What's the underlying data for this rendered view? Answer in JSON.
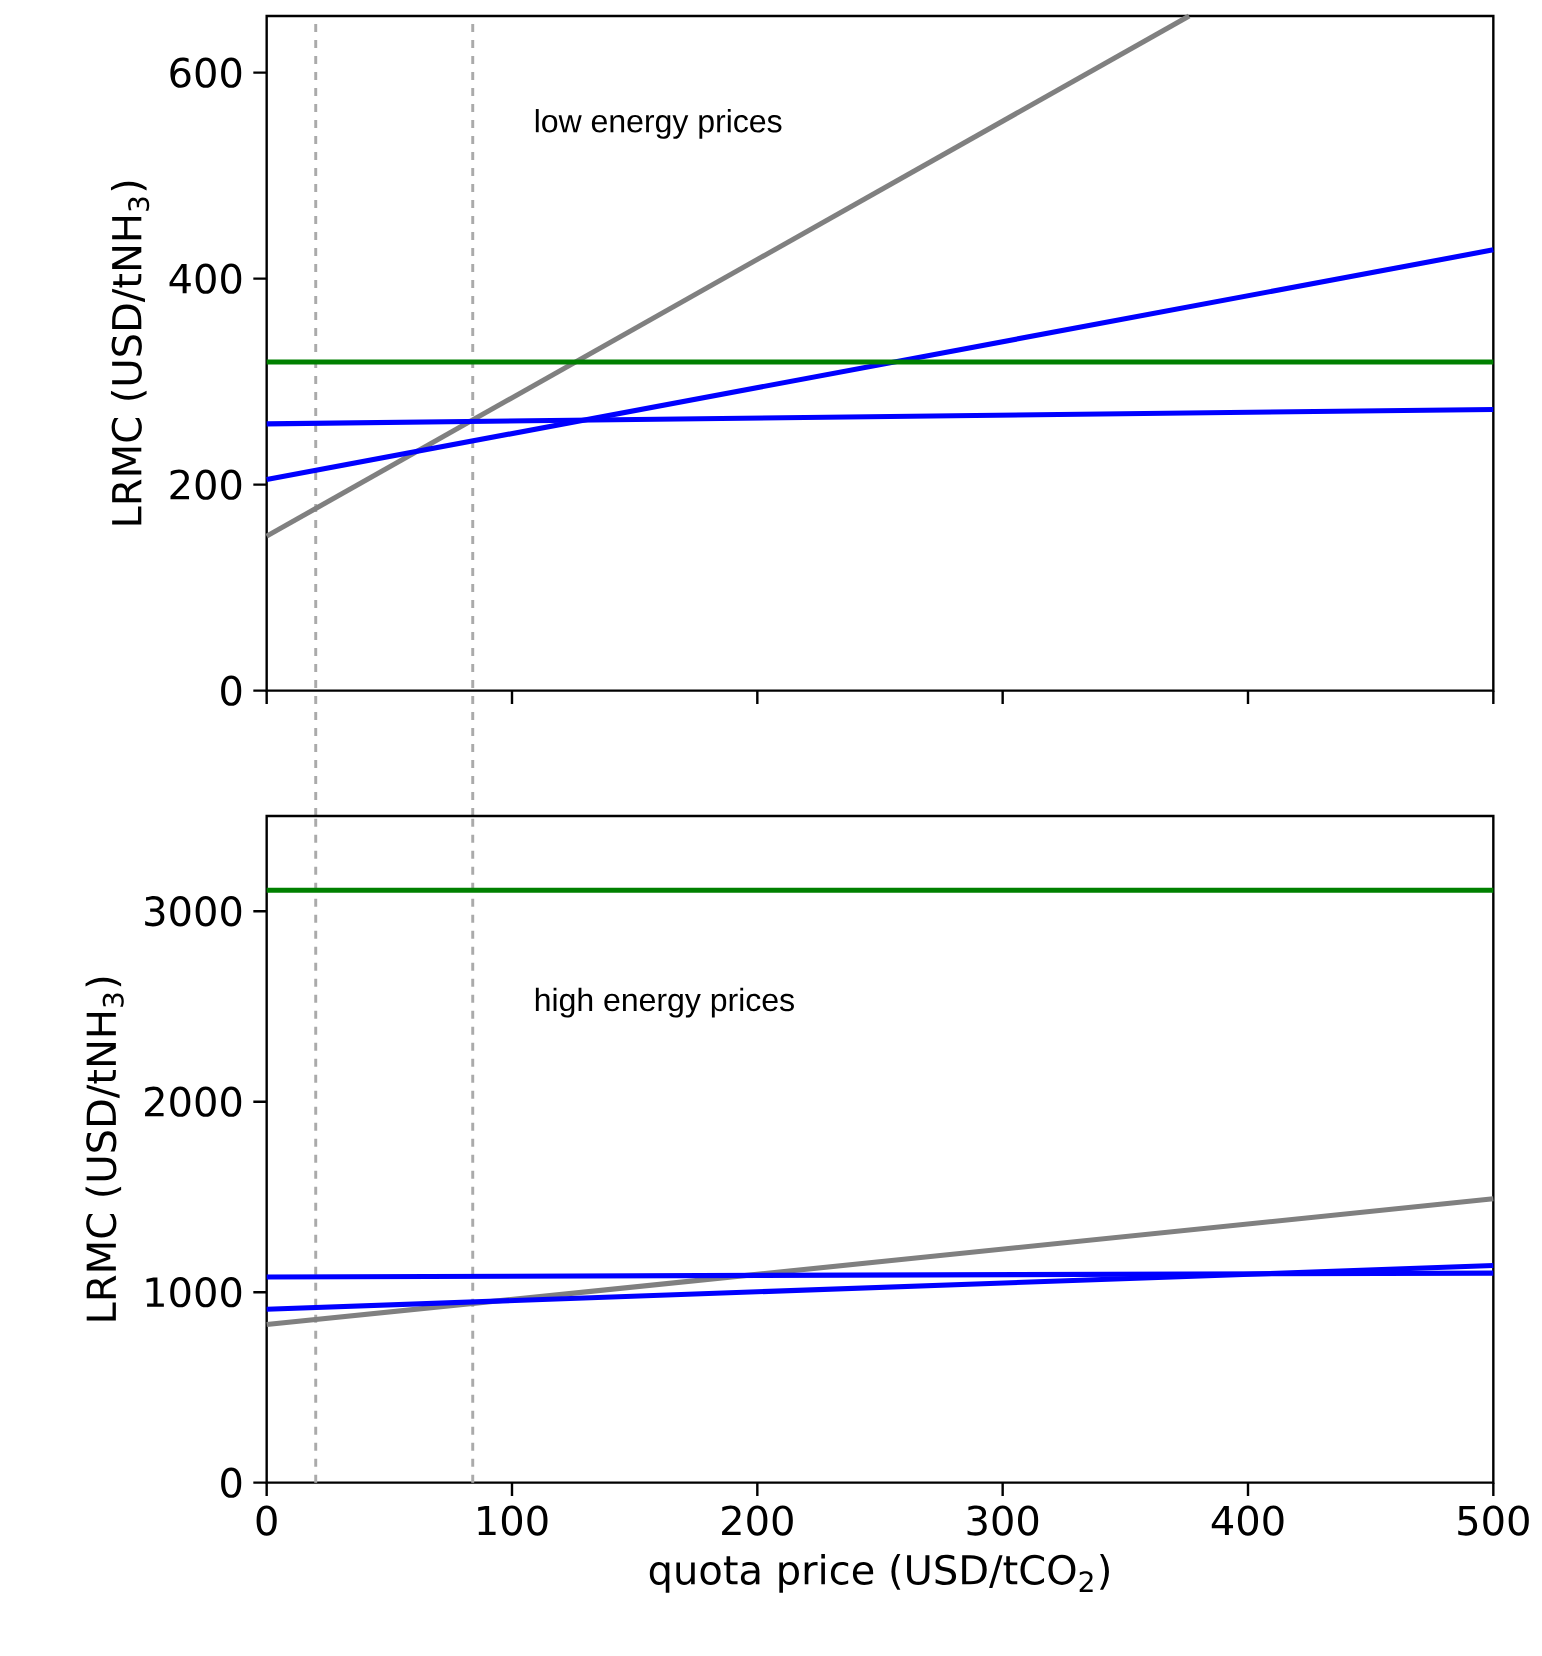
{
  "chart_data": [
    {
      "type": "line",
      "ylabel": "LRMC (USD/tNH$_{3}$)",
      "xlim": [
        0,
        500
      ],
      "ylim": [
        0,
        655
      ],
      "xticks": [
        0,
        100,
        200,
        300,
        400,
        500
      ],
      "yticks": [
        0,
        200,
        400,
        600
      ],
      "tick_labels": "y",
      "marker": "none",
      "line_style": "solid",
      "annotations": [
        "low energy prices"
      ],
      "ref_lines": [
        {
          "axis": "x",
          "value": 20,
          "color": "#aaaaaa",
          "line_style": "dashed"
        },
        {
          "axis": "x",
          "value": 84,
          "color": "#aaaaaa",
          "line_style": "dashed"
        }
      ],
      "series": [
        {
          "color": "#808080",
          "x": [
            0,
            376
          ],
          "values": [
            150,
            655
          ]
        },
        {
          "color": "#0000ff",
          "x": [
            0,
            500
          ],
          "values": [
            205,
            428
          ]
        },
        {
          "color": "#0000ff",
          "x": [
            0,
            500
          ],
          "values": [
            259,
            273
          ]
        },
        {
          "color": "#008000",
          "x": [
            0,
            500
          ],
          "values": [
            319,
            319
          ]
        }
      ]
    },
    {
      "type": "line",
      "ylabel": "LRMC (USD/tNH$_{3}$)",
      "xlabel": "quota price (USD/tCO$_{2}$)",
      "xlim": [
        0,
        500
      ],
      "ylim": [
        0,
        3500
      ],
      "xticks": [
        0,
        100,
        200,
        300,
        400,
        500
      ],
      "yticks": [
        0,
        1000,
        2000,
        3000
      ],
      "marker": "none",
      "line_style": "solid",
      "annotations": [
        "high energy prices"
      ],
      "ref_lines": [
        {
          "axis": "x",
          "value": 20,
          "color": "#aaaaaa",
          "line_style": "dashed"
        },
        {
          "axis": "x",
          "value": 84,
          "color": "#aaaaaa",
          "line_style": "dashed"
        }
      ],
      "series": [
        {
          "color": "#808080",
          "x": [
            0,
            500
          ],
          "values": [
            830,
            1490
          ]
        },
        {
          "color": "#0000ff",
          "x": [
            0,
            500
          ],
          "values": [
            1080,
            1100
          ]
        },
        {
          "color": "#0000ff",
          "x": [
            0,
            500
          ],
          "values": [
            910,
            1140
          ]
        },
        {
          "color": "#008000",
          "x": [
            0,
            500
          ],
          "values": [
            3110,
            3110
          ]
        }
      ]
    }
  ]
}
